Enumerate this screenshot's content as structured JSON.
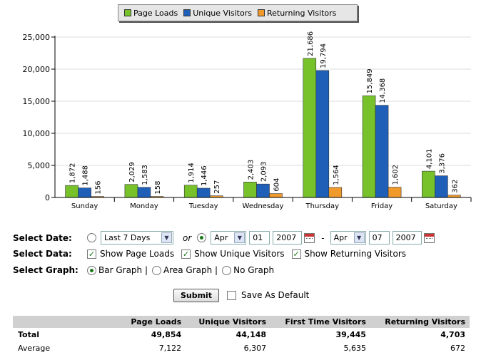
{
  "colors": {
    "page_loads": "#77c22b",
    "unique_visitors": "#1f5fb8",
    "returning_visitors": "#f09a2c"
  },
  "legend": {
    "page_loads": "Page Loads",
    "unique_visitors": "Unique Visitors",
    "returning_visitors": "Returning Visitors"
  },
  "chart_data": {
    "type": "bar",
    "categories": [
      "Sunday",
      "Monday",
      "Tuesday",
      "Wednesday",
      "Thursday",
      "Friday",
      "Saturday"
    ],
    "series": [
      {
        "name": "Page Loads",
        "values": [
          1872,
          2029,
          1914,
          2403,
          21686,
          15849,
          4101
        ],
        "labels": [
          "1,872",
          "2,029",
          "1,914",
          "2,403",
          "21,686",
          "15,849",
          "4,101"
        ]
      },
      {
        "name": "Unique Visitors",
        "values": [
          1488,
          1583,
          1446,
          2093,
          19794,
          14368,
          3376
        ],
        "labels": [
          "1,488",
          "1,583",
          "1,446",
          "2,093",
          "19,794",
          "14,368",
          "3,376"
        ]
      },
      {
        "name": "Returning Visitors",
        "values": [
          156,
          158,
          257,
          604,
          1564,
          1602,
          362
        ],
        "labels": [
          "156",
          "158",
          "257",
          "604",
          "1,564",
          "1,602",
          "362"
        ]
      }
    ],
    "yticks": [
      "0",
      "5,000",
      "10,000",
      "15,000",
      "20,000",
      "25,000"
    ],
    "ylim": [
      0,
      25000
    ],
    "grid": true,
    "legend_position": "top"
  },
  "form": {
    "select_date_label": "Select Date:",
    "range_option": "Last 7 Days",
    "or_label": "or",
    "start_month": "Apr",
    "start_day": "01",
    "start_year": "2007",
    "dash": "-",
    "end_month": "Apr",
    "end_day": "07",
    "end_year": "2007",
    "select_data_label": "Select Data:",
    "show_page_loads": "Show Page Loads",
    "show_unique_visitors": "Show Unique Visitors",
    "show_returning_visitors": "Show Returning Visitors",
    "select_graph_label": "Select Graph:",
    "bar_graph": "Bar Graph |",
    "area_graph": "Area Graph |",
    "no_graph": "No Graph",
    "submit": "Submit",
    "save_as_default": "Save As Default",
    "check_mark": "✓"
  },
  "stats_table": {
    "headers": [
      "",
      "Page Loads",
      "Unique Visitors",
      "First Time Visitors",
      "Returning Visitors"
    ],
    "total": {
      "label": "Total",
      "values": [
        "49,854",
        "44,148",
        "39,445",
        "4,703"
      ]
    },
    "average": {
      "label": "Average",
      "values": [
        "7,122",
        "6,307",
        "5,635",
        "672"
      ]
    }
  }
}
